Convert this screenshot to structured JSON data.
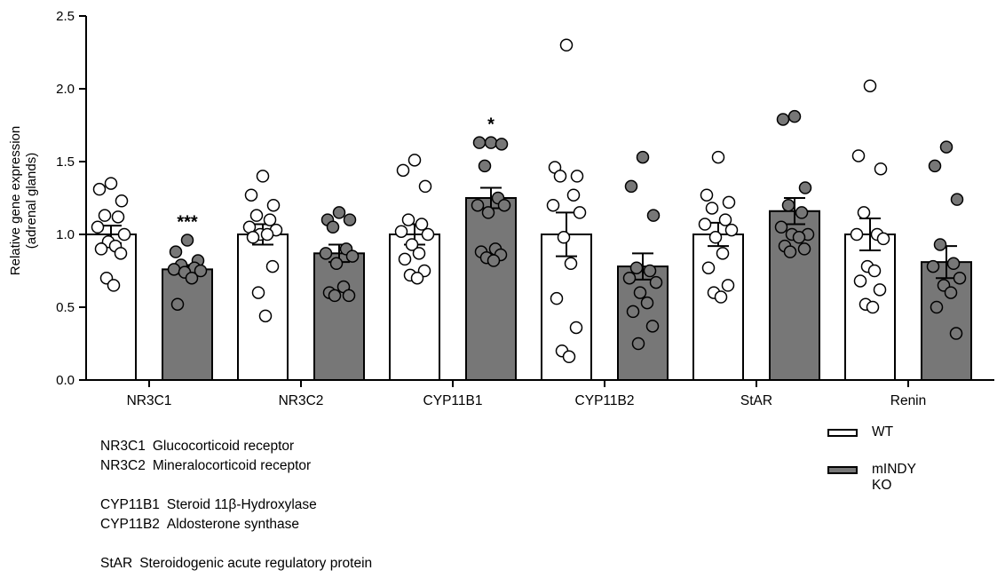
{
  "chart_data": {
    "type": "bar",
    "ylabel_lines": [
      "Relative gene expression",
      "(adrenal glands)"
    ],
    "ylim": [
      0,
      2.5
    ],
    "yticks": [
      "0.0",
      "0.5",
      "1.0",
      "1.5",
      "2.0",
      "2.5"
    ],
    "categories": [
      "NR3C1",
      "NR3C2",
      "CYP11B1",
      "CYP11B2",
      "StAR",
      "Renin"
    ],
    "series": [
      {
        "name": "WT",
        "fill": "#ffffff",
        "means": [
          1.0,
          1.0,
          1.0,
          1.0,
          1.0,
          1.0
        ],
        "sem": [
          0.06,
          0.07,
          0.07,
          0.15,
          0.08,
          0.11
        ],
        "annotations": [
          "",
          "",
          "",
          "",
          "",
          ""
        ],
        "points": [
          [
            1.35,
            1.31,
            1.23,
            1.13,
            1.12,
            1.05,
            1.0,
            0.95,
            0.92,
            0.9,
            0.87,
            0.7,
            0.65
          ],
          [
            1.4,
            1.27,
            1.2,
            1.13,
            1.1,
            1.05,
            1.03,
            1.0,
            1.0,
            0.98,
            0.78,
            0.6,
            0.44
          ],
          [
            1.51,
            1.44,
            1.33,
            1.1,
            1.07,
            1.02,
            1.0,
            0.93,
            0.87,
            0.83,
            0.75,
            0.72,
            0.7
          ],
          [
            2.3,
            1.46,
            1.4,
            1.4,
            1.27,
            1.2,
            1.15,
            0.98,
            0.8,
            0.56,
            0.36,
            0.2,
            0.16
          ],
          [
            1.53,
            1.27,
            1.22,
            1.18,
            1.1,
            1.07,
            1.03,
            0.98,
            0.87,
            0.77,
            0.65,
            0.6,
            0.57
          ],
          [
            2.02,
            1.54,
            1.45,
            1.15,
            1.0,
            1.0,
            0.97,
            0.78,
            0.75,
            0.68,
            0.62,
            0.52,
            0.5
          ]
        ]
      },
      {
        "name": "mINDY KO",
        "fill": "#777777",
        "means": [
          0.76,
          0.87,
          1.25,
          0.78,
          1.16,
          0.81
        ],
        "sem": [
          0.03,
          0.06,
          0.07,
          0.09,
          0.09,
          0.11
        ],
        "annotations": [
          "***",
          "",
          "*",
          "",
          "",
          ""
        ],
        "points": [
          [
            0.96,
            0.88,
            0.82,
            0.79,
            0.77,
            0.76,
            0.75,
            0.74,
            0.7,
            0.52
          ],
          [
            1.15,
            1.1,
            1.1,
            1.05,
            0.9,
            0.87,
            0.85,
            0.8,
            0.64,
            0.6,
            0.58,
            0.58
          ],
          [
            1.63,
            1.63,
            1.62,
            1.47,
            1.25,
            1.2,
            1.2,
            1.15,
            0.9,
            0.88,
            0.86,
            0.84,
            0.82
          ],
          [
            1.53,
            1.33,
            1.13,
            0.77,
            0.75,
            0.7,
            0.67,
            0.6,
            0.53,
            0.47,
            0.37,
            0.25
          ],
          [
            1.81,
            1.79,
            1.32,
            1.2,
            1.15,
            1.05,
            1.0,
            1.0,
            0.98,
            0.92,
            0.9,
            0.88
          ],
          [
            1.6,
            1.47,
            1.24,
            0.93,
            0.8,
            0.78,
            0.7,
            0.65,
            0.6,
            0.5,
            0.32
          ]
        ]
      }
    ]
  },
  "abbreviations": [
    {
      "code": "NR3C1",
      "name": "Glucocorticoid receptor"
    },
    {
      "code": "NR3C2",
      "name": "Mineralocorticoid receptor"
    },
    {
      "code": "CYP11B1",
      "name": "Steroid 11β-Hydroxylase"
    },
    {
      "code": "CYP11B2",
      "name": "Aldosterone synthase"
    },
    {
      "code": "StAR",
      "name": "Steroidogenic acute regulatory protein"
    }
  ],
  "legend": [
    {
      "label": "WT",
      "fill": "#ffffff"
    },
    {
      "label": "mINDY KO",
      "fill": "#777777"
    }
  ]
}
